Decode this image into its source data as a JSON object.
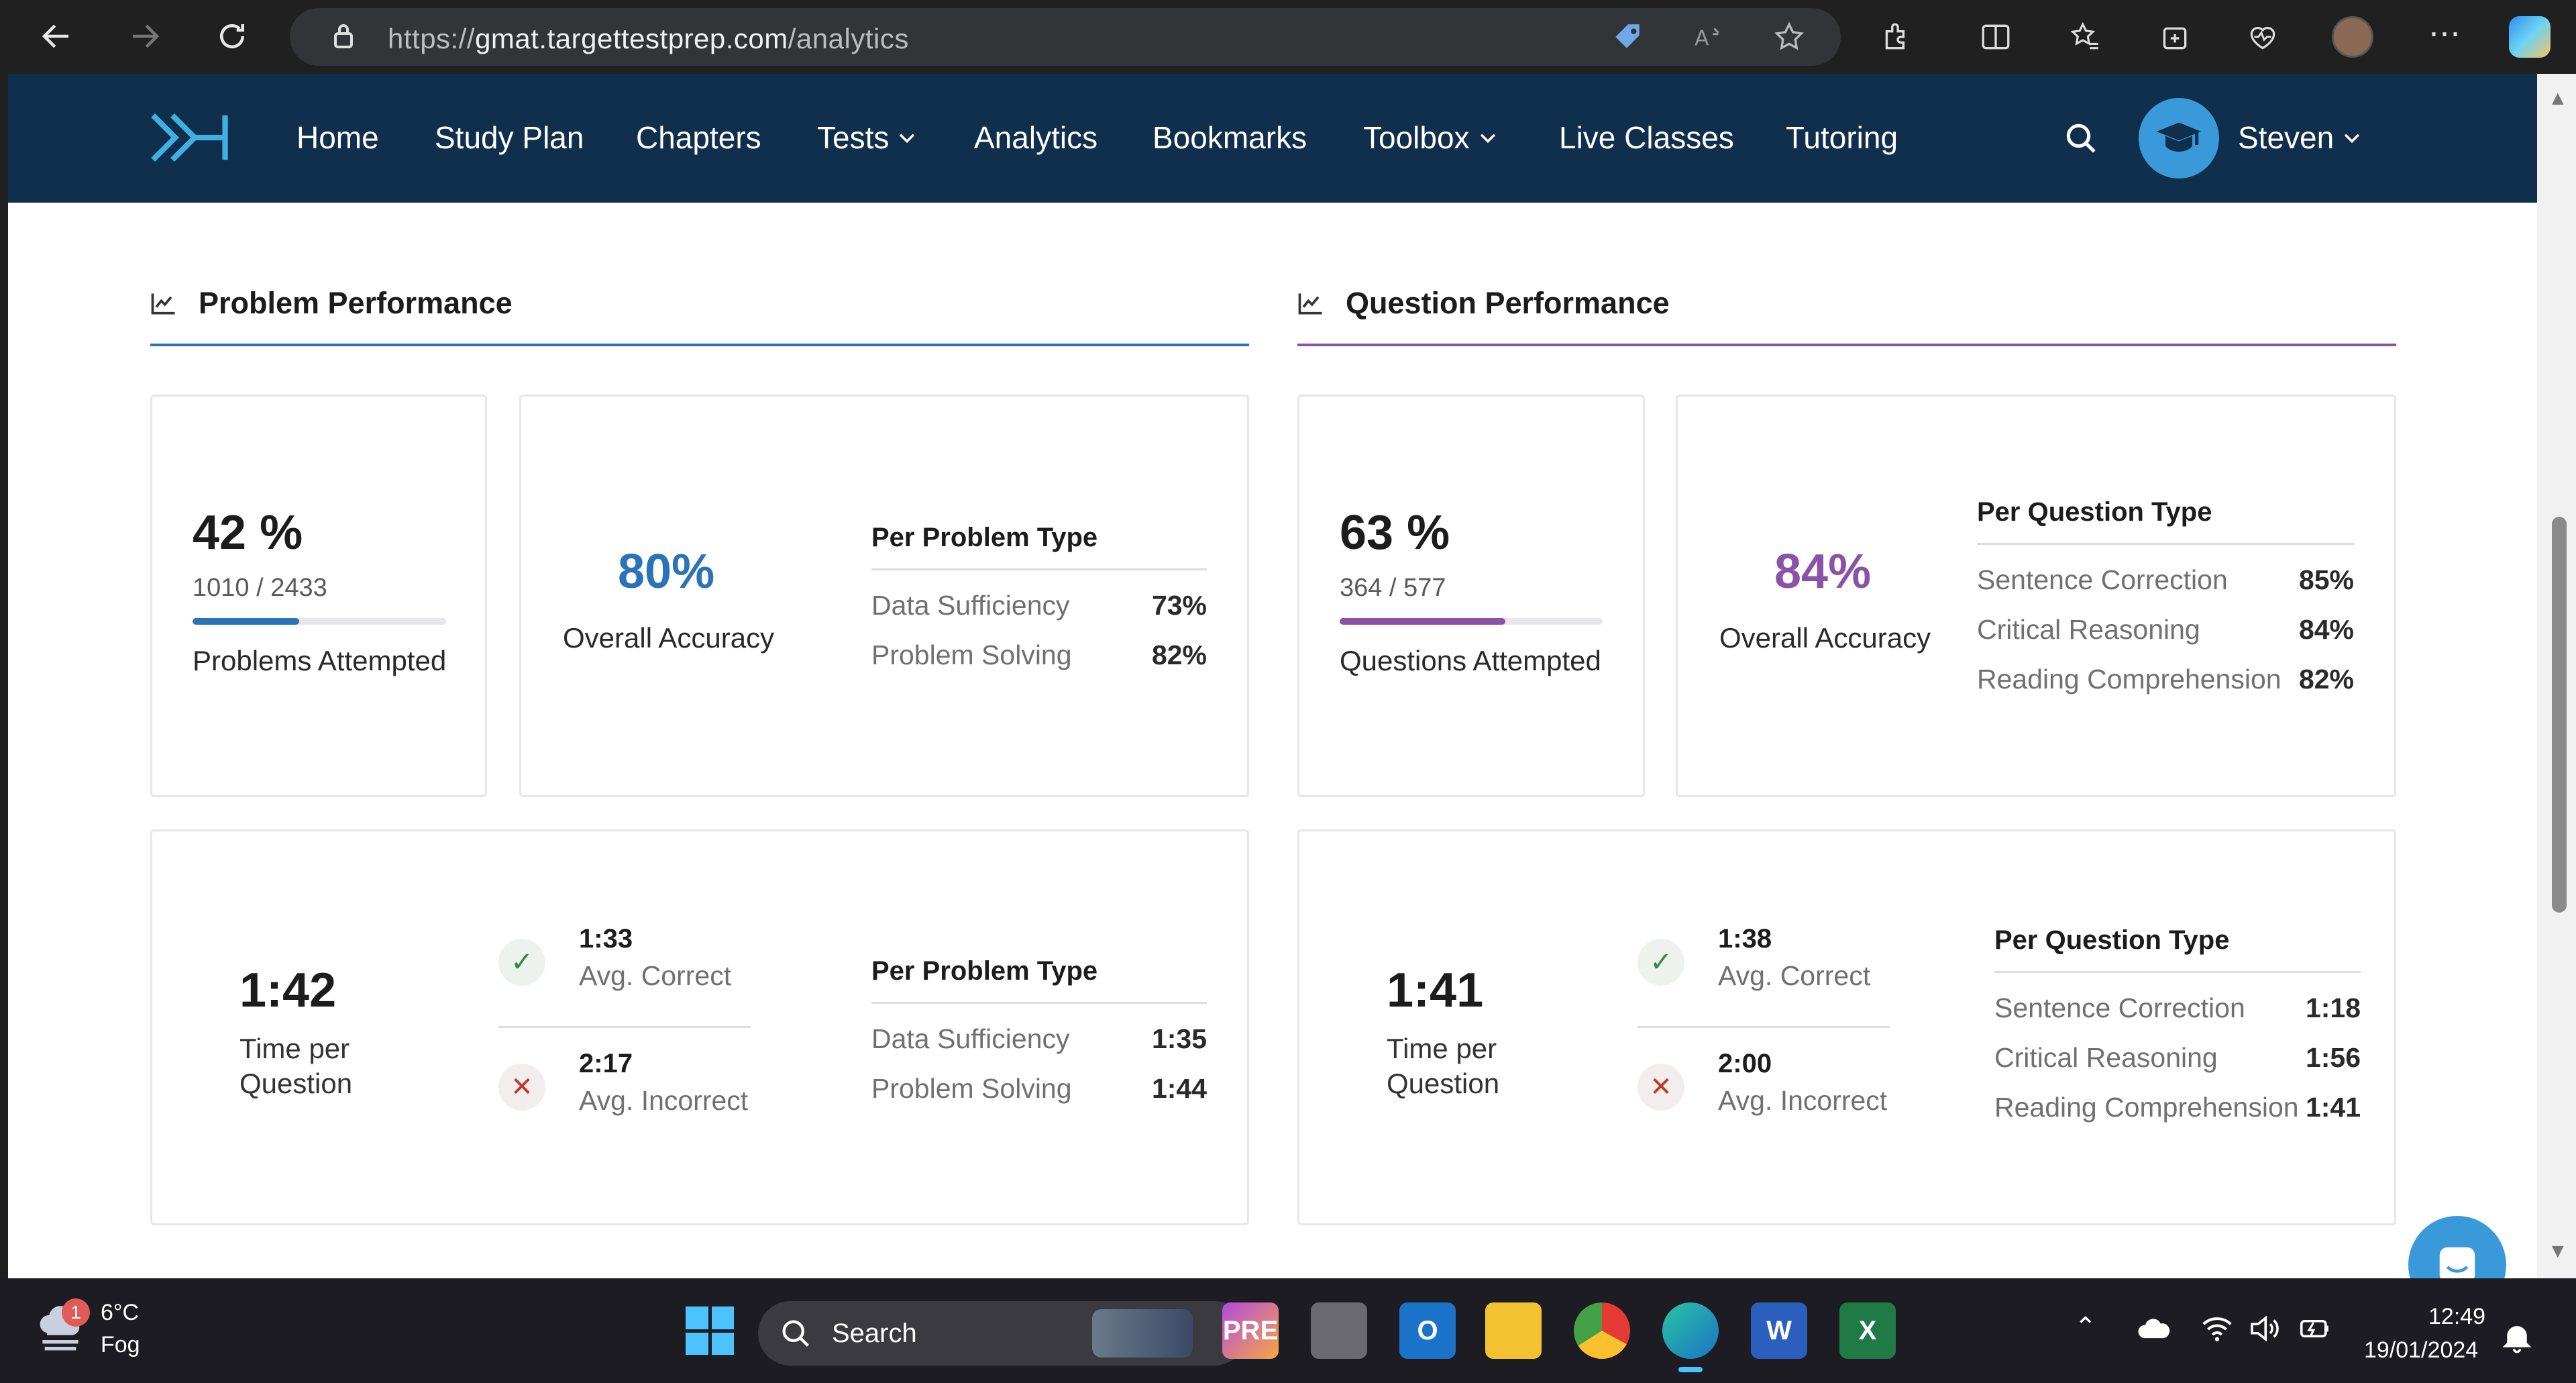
{
  "browser": {
    "url_prefix": "https://",
    "url_domain": "gmat.targettestprep.com",
    "url_path": "/analytics"
  },
  "nav": {
    "items": [
      "Home",
      "Study Plan",
      "Chapters",
      "Tests",
      "Analytics",
      "Bookmarks",
      "Toolbox",
      "Live Classes",
      "Tutoring"
    ],
    "user": "Steven"
  },
  "problem": {
    "title": "Problem Performance",
    "attempted_pct": "42 %",
    "attempted_count": "1010 / 2433",
    "attempted_fraction": 0.42,
    "attempted_label": "Problems Attempted",
    "accuracy": "80%",
    "accuracy_label": "Overall Accuracy",
    "type_heading": "Per Problem Type",
    "types": [
      {
        "name": "Data Sufficiency",
        "accuracy": "73%",
        "time": "1:35"
      },
      {
        "name": "Problem Solving",
        "accuracy": "82%",
        "time": "1:44"
      }
    ],
    "time_per_question": "1:42",
    "time_label_1": "Time per",
    "time_label_2": "Question",
    "avg_correct": "1:33",
    "avg_correct_label": "Avg. Correct",
    "avg_incorrect": "2:17",
    "avg_incorrect_label": "Avg. Incorrect"
  },
  "question": {
    "title": "Question Performance",
    "attempted_pct": "63 %",
    "attempted_count": "364 / 577",
    "attempted_fraction": 0.63,
    "attempted_label": "Questions Attempted",
    "accuracy": "84%",
    "accuracy_label": "Overall Accuracy",
    "type_heading": "Per Question Type",
    "types": [
      {
        "name": "Sentence Correction",
        "accuracy": "85%",
        "time": "1:18"
      },
      {
        "name": "Critical Reasoning",
        "accuracy": "84%",
        "time": "1:56"
      },
      {
        "name": "Reading Comprehension",
        "accuracy": "82%",
        "time": "1:41"
      }
    ],
    "time_per_question": "1:41",
    "time_label_1": "Time per",
    "time_label_2": "Question",
    "avg_correct": "1:38",
    "avg_correct_label": "Avg. Correct",
    "avg_incorrect": "2:00",
    "avg_incorrect_label": "Avg. Incorrect"
  },
  "taskbar": {
    "weather_temp": "6°C",
    "weather_desc": "Fog",
    "weather_badge": "1",
    "search_label": "Search",
    "time": "12:49",
    "date": "19/01/2024"
  },
  "colors": {
    "nav_bg": "#0f2f4d",
    "problem_accent": "#2a73b8",
    "question_accent": "#8a53a8",
    "correct": "#2e8b3e",
    "incorrect": "#c0392b"
  }
}
